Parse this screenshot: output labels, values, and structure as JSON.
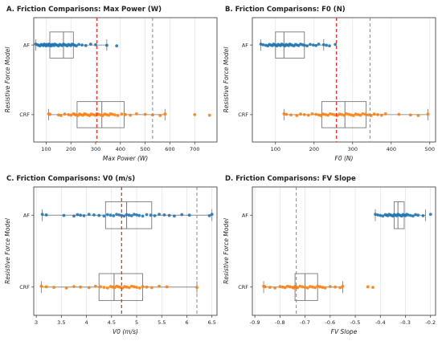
{
  "figure": {
    "background": "#ffffff"
  },
  "style": {
    "af_color": "#1f77b4",
    "crf_color": "#ff7f0e",
    "box_color": "#777777",
    "grid_color": "#dddddd",
    "red_line": "#e8372b",
    "gray_line": "#888888"
  },
  "chart_data": [
    {
      "type": "box",
      "title": "A.  Friction Comparisons: Max Power (W)",
      "xlabel": "Max Power (W)",
      "ylabel": "Resistive Force Model",
      "categories": [
        "AF",
        "CRF"
      ],
      "xlim": [
        50,
        790
      ],
      "xticks": [
        100,
        200,
        300,
        400,
        500,
        600,
        700
      ],
      "grid": true,
      "ref_lines": [
        {
          "value": 305,
          "color": "red",
          "style": "dashed"
        },
        {
          "value": 530,
          "color": "gray",
          "style": "dashed"
        }
      ],
      "series": [
        {
          "category": "AF",
          "color": "#1f77b4",
          "box": {
            "whisker_low": 58,
            "q1": 115,
            "median": 170,
            "q3": 210,
            "whisker_high": 345
          },
          "points": [
            58,
            65,
            70,
            75,
            80,
            85,
            88,
            92,
            95,
            98,
            100,
            103,
            106,
            110,
            112,
            115,
            118,
            121,
            125,
            128,
            132,
            135,
            140,
            145,
            150,
            155,
            160,
            165,
            170,
            175,
            180,
            185,
            190,
            195,
            200,
            205,
            210,
            215,
            222,
            232,
            245,
            260,
            280,
            300,
            345,
            385
          ]
        },
        {
          "category": "CRF",
          "color": "#ff7f0e",
          "box": {
            "whisker_low": 110,
            "q1": 225,
            "median": 325,
            "q3": 415,
            "whisker_high": 580
          },
          "points": [
            110,
            115,
            150,
            160,
            175,
            190,
            200,
            210,
            215,
            220,
            228,
            235,
            240,
            248,
            255,
            260,
            268,
            275,
            282,
            290,
            298,
            305,
            312,
            320,
            328,
            336,
            344,
            352,
            360,
            368,
            378,
            390,
            405,
            420,
            440,
            465,
            500,
            530,
            560,
            580,
            700,
            760
          ]
        }
      ]
    },
    {
      "type": "box",
      "title": "B.  Friction Comparisons: F0 (N)",
      "xlabel": "F0 (N)",
      "ylabel": "Resistive Force Model",
      "categories": [
        "AF",
        "CRF"
      ],
      "xlim": [
        40,
        515
      ],
      "xticks": [
        100,
        200,
        300,
        400,
        500
      ],
      "grid": true,
      "ref_lines": [
        {
          "value": 258,
          "color": "red",
          "style": "dashed"
        },
        {
          "value": 345,
          "color": "gray",
          "style": "dashed"
        }
      ],
      "series": [
        {
          "category": "AF",
          "color": "#1f77b4",
          "box": {
            "whisker_low": 62,
            "q1": 100,
            "median": 122,
            "q3": 175,
            "whisker_high": 225
          },
          "points": [
            62,
            68,
            75,
            80,
            84,
            88,
            92,
            95,
            98,
            101,
            104,
            107,
            110,
            113,
            116,
            119,
            122,
            125,
            128,
            131,
            134,
            137,
            140,
            144,
            148,
            152,
            156,
            160,
            165,
            170,
            175,
            182,
            190,
            198,
            205,
            212,
            225,
            232,
            240,
            255
          ]
        },
        {
          "category": "CRF",
          "color": "#ff7f0e",
          "box": {
            "whisker_low": 122,
            "q1": 220,
            "median": 280,
            "q3": 335,
            "whisker_high": 495
          },
          "points": [
            122,
            128,
            140,
            155,
            165,
            175,
            185,
            195,
            205,
            212,
            218,
            224,
            230,
            236,
            242,
            248,
            254,
            260,
            266,
            272,
            278,
            284,
            290,
            296,
            302,
            308,
            314,
            320,
            326,
            333,
            340,
            348,
            356,
            365,
            375,
            385,
            420,
            450,
            470,
            495
          ]
        }
      ]
    },
    {
      "type": "box",
      "title": "C.  Friction Comparisons: V0 (m/s)",
      "xlabel": "V0 (m/s)",
      "ylabel": "Resistive Force Model",
      "categories": [
        "AF",
        "CRF"
      ],
      "xlim": [
        2.95,
        6.6
      ],
      "xticks": [
        3.0,
        3.5,
        4.0,
        4.5,
        5.0,
        5.5,
        6.0,
        6.5
      ],
      "grid": true,
      "ref_lines": [
        {
          "value": 4.7,
          "color": "red",
          "style": "dashed"
        },
        {
          "value": 6.2,
          "color": "gray",
          "style": "dashed"
        }
      ],
      "series": [
        {
          "category": "AF",
          "color": "#1f77b4",
          "box": {
            "whisker_low": 3.12,
            "q1": 4.38,
            "median": 4.8,
            "q3": 5.3,
            "whisker_high": 6.5
          },
          "points": [
            3.12,
            3.2,
            3.55,
            3.75,
            3.82,
            3.88,
            3.95,
            4.05,
            4.15,
            4.25,
            4.35,
            4.42,
            4.48,
            4.54,
            4.6,
            4.65,
            4.7,
            4.75,
            4.8,
            4.85,
            4.9,
            4.95,
            5.0,
            5.05,
            5.12,
            5.2,
            5.28,
            5.36,
            5.45,
            5.55,
            5.65,
            5.75,
            5.9,
            6.05,
            6.45,
            6.5
          ]
        },
        {
          "category": "CRF",
          "color": "#ff7f0e",
          "box": {
            "whisker_low": 3.1,
            "q1": 4.25,
            "median": 4.55,
            "q3": 5.12,
            "whisker_high": 6.2
          },
          "points": [
            3.1,
            3.2,
            3.35,
            3.6,
            3.75,
            3.88,
            4.05,
            4.18,
            4.28,
            4.35,
            4.42,
            4.48,
            4.52,
            4.56,
            4.6,
            4.64,
            4.68,
            4.72,
            4.76,
            4.8,
            4.85,
            4.9,
            4.95,
            5.0,
            5.06,
            5.12,
            5.2,
            5.3,
            5.45,
            5.6,
            6.2
          ]
        }
      ]
    },
    {
      "type": "box",
      "title": "D.  Friction Comparisons: FV Slope",
      "xlabel": "FV Slope",
      "ylabel": "Resistive Force Model",
      "categories": [
        "AF",
        "CRF"
      ],
      "xlim": [
        -0.91,
        -0.18
      ],
      "xticks": [
        -0.9,
        -0.8,
        -0.7,
        -0.6,
        -0.5,
        -0.4,
        -0.3,
        -0.2
      ],
      "grid": true,
      "ref_lines": [
        {
          "value": -0.735,
          "color": "gray",
          "style": "dashed"
        }
      ],
      "series": [
        {
          "category": "AF",
          "color": "#1f77b4",
          "box": {
            "whisker_low": -0.42,
            "q1": -0.345,
            "median": -0.33,
            "q3": -0.305,
            "whisker_high": -0.22
          },
          "points": [
            -0.42,
            -0.41,
            -0.4,
            -0.39,
            -0.38,
            -0.375,
            -0.37,
            -0.365,
            -0.36,
            -0.355,
            -0.35,
            -0.345,
            -0.34,
            -0.335,
            -0.33,
            -0.325,
            -0.32,
            -0.315,
            -0.31,
            -0.305,
            -0.3,
            -0.295,
            -0.29,
            -0.28,
            -0.27,
            -0.26,
            -0.25,
            -0.23,
            -0.2
          ]
        },
        {
          "category": "CRF",
          "color": "#ff7f0e",
          "box": {
            "whisker_low": -0.865,
            "q1": -0.74,
            "median": -0.7,
            "q3": -0.65,
            "whisker_high": -0.55
          },
          "points": [
            -0.865,
            -0.86,
            -0.84,
            -0.82,
            -0.8,
            -0.79,
            -0.78,
            -0.77,
            -0.76,
            -0.75,
            -0.745,
            -0.74,
            -0.735,
            -0.73,
            -0.72,
            -0.71,
            -0.7,
            -0.69,
            -0.68,
            -0.67,
            -0.66,
            -0.65,
            -0.64,
            -0.63,
            -0.62,
            -0.6,
            -0.58,
            -0.56,
            -0.55,
            -0.45,
            -0.43
          ]
        }
      ]
    }
  ]
}
